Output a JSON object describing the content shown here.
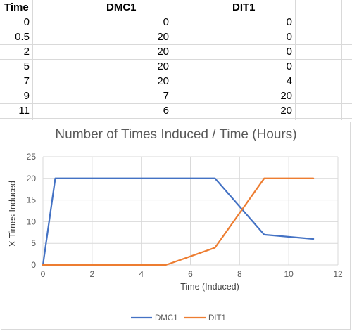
{
  "table": {
    "headers": [
      "Time",
      "DMC1",
      "DIT1"
    ],
    "rows": [
      [
        "0",
        "0",
        "0"
      ],
      [
        "0.5",
        "20",
        "0"
      ],
      [
        "2",
        "20",
        "0"
      ],
      [
        "5",
        "20",
        "0"
      ],
      [
        "7",
        "20",
        "4"
      ],
      [
        "9",
        "7",
        "20"
      ],
      [
        "11",
        "6",
        "20"
      ]
    ]
  },
  "chart_data": {
    "type": "line",
    "title": "Number of Times Induced / Time (Hours)",
    "xlabel": "Time (Induced)",
    "ylabel": "X-Times Induced",
    "x": [
      0,
      0.5,
      2,
      5,
      7,
      9,
      11
    ],
    "xlim": [
      0,
      12
    ],
    "ylim": [
      0,
      25
    ],
    "xticks": [
      "0",
      "2",
      "4",
      "6",
      "8",
      "10",
      "12"
    ],
    "yticks": [
      "0",
      "5",
      "10",
      "15",
      "20",
      "25"
    ],
    "grid": true,
    "legend": "bottom",
    "series": [
      {
        "name": "DMC1",
        "values": [
          0,
          20,
          20,
          20,
          20,
          7,
          6
        ],
        "color": "#4472c4"
      },
      {
        "name": "DIT1",
        "values": [
          0,
          0,
          0,
          0,
          4,
          20,
          20
        ],
        "color": "#ed7d31"
      }
    ]
  }
}
